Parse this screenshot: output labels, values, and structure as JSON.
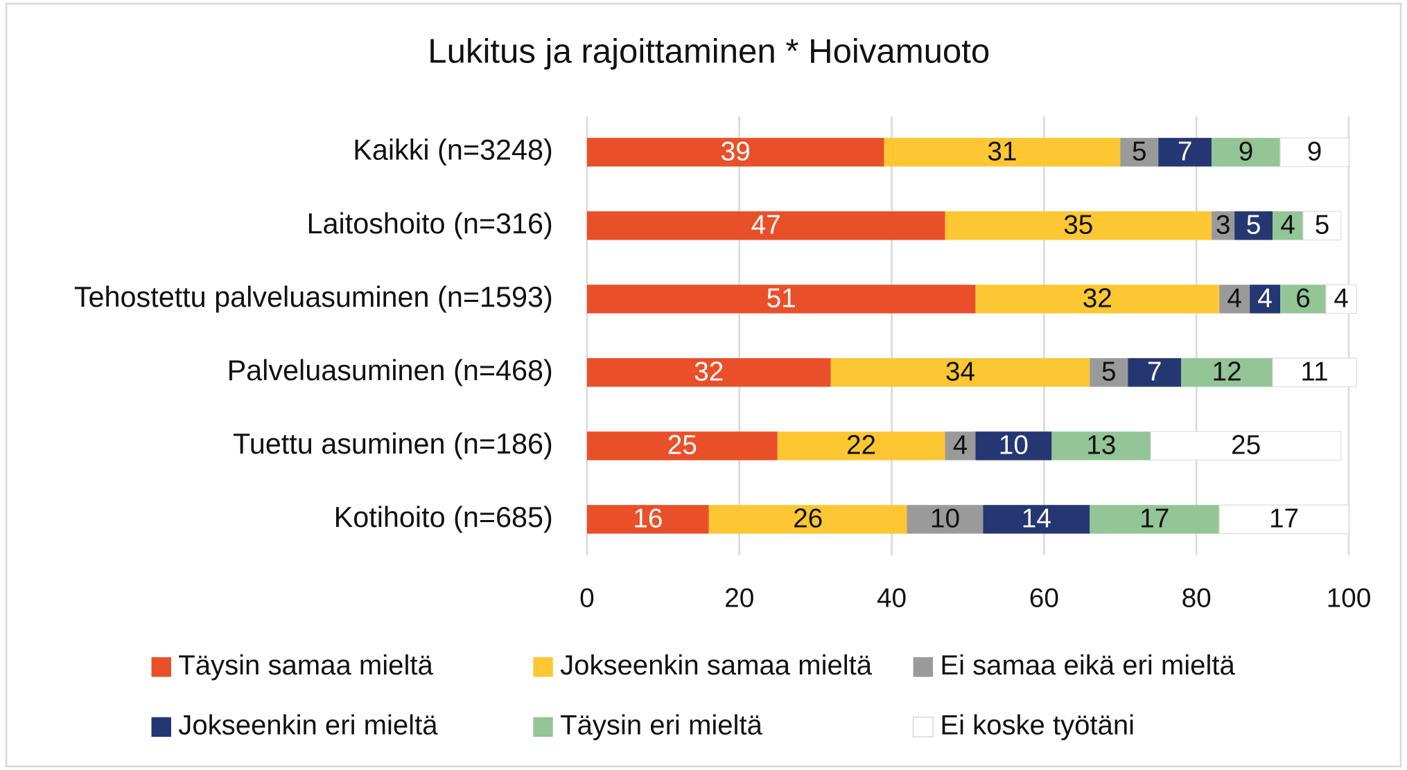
{
  "chart_data": {
    "type": "stacked_barh",
    "title": "Lukitus ja rajoittaminen * Hoivamuoto",
    "categories": [
      "Kaikki (n=3248)",
      "Laitoshoito (n=316)",
      "Tehostettu palveluasuminen (n=1593)",
      "Palveluasuminen (n=468)",
      "Tuettu asuminen (n=186)",
      "Kotihoito (n=685)"
    ],
    "series": [
      {
        "name": "Täysin samaa mieltä",
        "color": "#e9502a",
        "label_color": "#ffffff",
        "values": [
          39,
          47,
          51,
          32,
          25,
          16
        ]
      },
      {
        "name": "Jokseenkin samaa mieltä",
        "color": "#fdc733",
        "label_color": "#111111",
        "values": [
          31,
          35,
          32,
          34,
          22,
          26
        ]
      },
      {
        "name": "Ei samaa eikä eri mieltä",
        "color": "#9a9a9a",
        "label_color": "#111111",
        "values": [
          5,
          3,
          4,
          5,
          4,
          10
        ]
      },
      {
        "name": "Jokseenkin eri mieltä",
        "color": "#253772",
        "label_color": "#ffffff",
        "values": [
          7,
          5,
          4,
          7,
          10,
          14
        ]
      },
      {
        "name": "Täysin eri mieltä",
        "color": "#93c596",
        "label_color": "#111111",
        "values": [
          9,
          4,
          6,
          12,
          13,
          17
        ]
      },
      {
        "name": "Ei koske työtäni",
        "color": "#ffffff",
        "label_color": "#111111",
        "values": [
          9,
          5,
          4,
          11,
          25,
          17
        ]
      }
    ],
    "xlim": [
      0,
      100
    ],
    "xticks": [
      0,
      20,
      40,
      60,
      80,
      100
    ],
    "grid": true,
    "legend": "bottom"
  }
}
